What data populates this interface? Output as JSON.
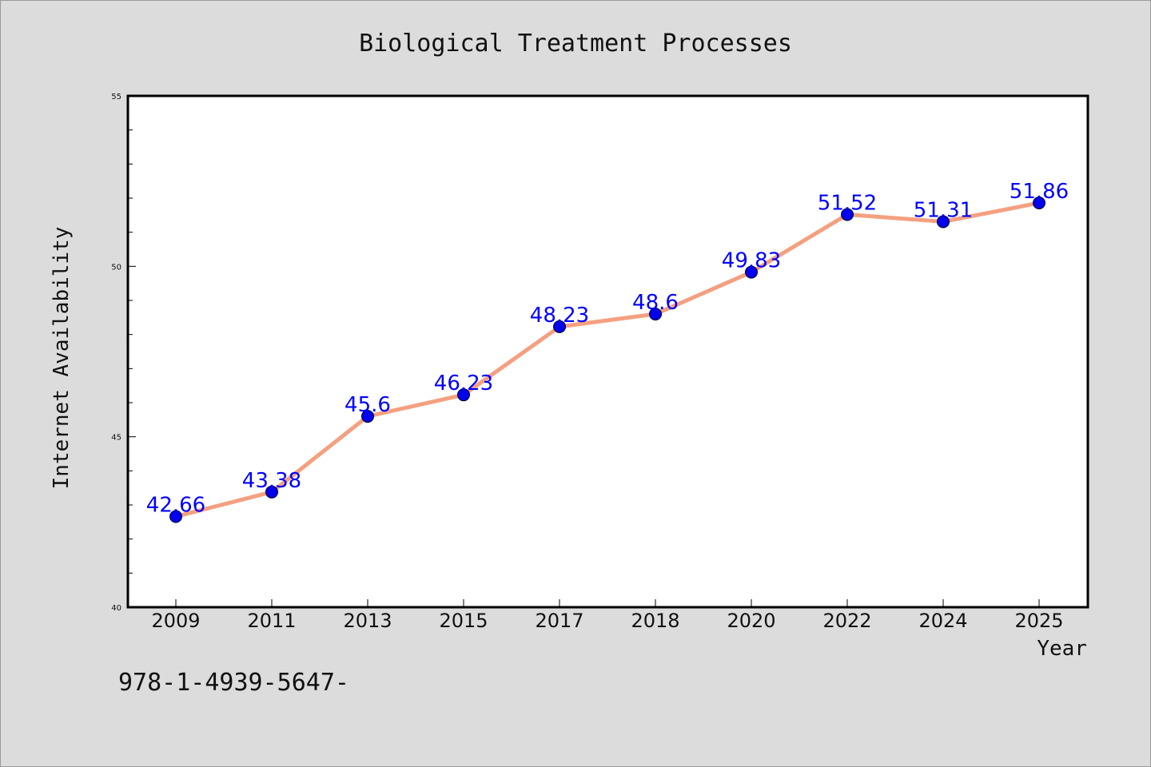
{
  "footnote": "978-1-4939-5647-",
  "colors": {
    "background": "#dcdcdc",
    "plot_area": "#ffffff",
    "line": "#f4a080",
    "marker": "#0000ee",
    "label": "#0000ff"
  },
  "chart_data": {
    "type": "line",
    "title": "Biological Treatment Processes",
    "xlabel": "Year",
    "ylabel": "Internet Availability",
    "categories": [
      "2009",
      "2011",
      "2013",
      "2015",
      "2017",
      "2018",
      "2020",
      "2022",
      "2024",
      "2025"
    ],
    "values": [
      42.66,
      43.38,
      45.6,
      46.23,
      48.23,
      48.6,
      49.83,
      51.52,
      51.31,
      51.86
    ],
    "data_labels": [
      "42.66",
      "43.38",
      "45.6",
      "46.23",
      "48.23",
      "48.6",
      "49.83",
      "51.52",
      "51.31",
      "51.86"
    ],
    "ylim": [
      40,
      55
    ],
    "yticks": [
      "40",
      "45",
      "50",
      "55"
    ],
    "grid": false,
    "legend": "none"
  }
}
